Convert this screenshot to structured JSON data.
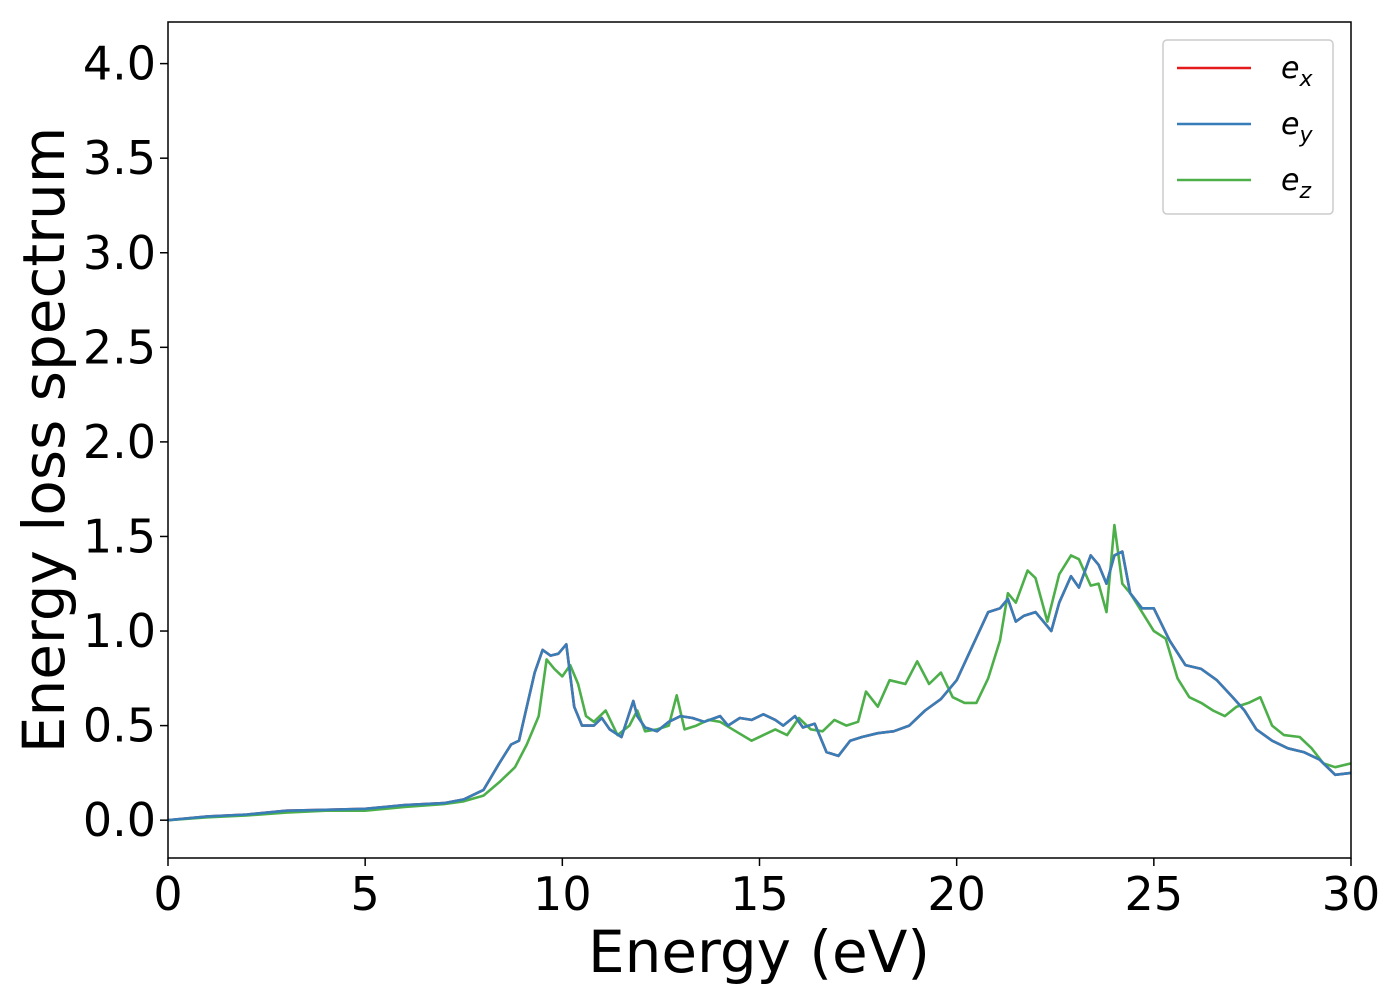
{
  "chart_data": {
    "type": "line",
    "title": "",
    "xlabel": "Energy (eV)",
    "ylabel": "Energy loss spectrum",
    "xlim": [
      0,
      30
    ],
    "ylim": [
      -0.2,
      4.22
    ],
    "xticks": [
      0,
      5,
      10,
      15,
      20,
      25,
      30
    ],
    "xtick_labels": [
      "0",
      "5",
      "10",
      "15",
      "20",
      "25",
      "30"
    ],
    "yticks": [
      0.0,
      0.5,
      1.0,
      1.5,
      2.0,
      2.5,
      3.0,
      3.5,
      4.0
    ],
    "ytick_labels": [
      "0.0",
      "0.5",
      "1.0",
      "1.5",
      "2.0",
      "2.5",
      "3.0",
      "3.5",
      "4.0"
    ],
    "grid": false,
    "legend_position": "top-right",
    "series": [
      {
        "name": "e_x",
        "label_main": "e",
        "label_sub": "x",
        "color": "#e41a1c",
        "x": [
          0,
          1,
          2,
          3,
          4,
          5,
          6,
          7,
          7.5,
          8,
          8.4,
          8.7,
          8.9,
          9.1,
          9.3,
          9.5,
          9.7,
          9.9,
          10.1,
          10.3,
          10.5,
          10.8,
          11.0,
          11.2,
          11.5,
          11.8,
          11.9,
          12.1,
          12.4,
          12.7,
          13.0,
          13.3,
          13.6,
          14.0,
          14.2,
          14.5,
          14.8,
          15.1,
          15.4,
          15.6,
          15.9,
          16.1,
          16.4,
          16.7,
          17.0,
          17.3,
          17.6,
          18.0,
          18.4,
          18.8,
          19.2,
          19.6,
          20.0,
          20.4,
          20.8,
          21.1,
          21.3,
          21.5,
          21.7,
          22.0,
          22.4,
          22.6,
          22.9,
          23.1,
          23.4,
          23.6,
          23.8,
          24.0,
          24.2,
          24.4,
          24.7,
          25.0,
          25.4,
          25.8,
          26.2,
          26.6,
          27.0,
          27.3,
          27.6,
          28.0,
          28.4,
          28.8,
          29.2,
          29.6,
          30.0
        ],
        "y": [
          0,
          0.02,
          0.03,
          0.05,
          0.055,
          0.06,
          0.08,
          0.09,
          0.11,
          0.16,
          0.3,
          0.4,
          0.42,
          0.6,
          0.78,
          0.9,
          0.87,
          0.88,
          0.93,
          0.6,
          0.5,
          0.5,
          0.54,
          0.48,
          0.44,
          0.63,
          0.55,
          0.49,
          0.47,
          0.52,
          0.55,
          0.54,
          0.52,
          0.55,
          0.5,
          0.54,
          0.53,
          0.56,
          0.53,
          0.5,
          0.55,
          0.49,
          0.51,
          0.36,
          0.34,
          0.42,
          0.44,
          0.46,
          0.47,
          0.5,
          0.58,
          0.64,
          0.74,
          0.92,
          1.1,
          1.12,
          1.17,
          1.05,
          1.08,
          1.1,
          1.0,
          1.15,
          1.29,
          1.23,
          1.4,
          1.35,
          1.25,
          1.4,
          1.42,
          1.2,
          1.12,
          1.12,
          0.95,
          0.82,
          0.8,
          0.74,
          0.65,
          0.58,
          0.48,
          0.42,
          0.38,
          0.36,
          0.32,
          0.24,
          0.25
        ]
      },
      {
        "name": "e_y",
        "label_main": "e",
        "label_sub": "y",
        "color": "#377eb8",
        "x": [
          0,
          1,
          2,
          3,
          4,
          5,
          6,
          7,
          7.5,
          8,
          8.4,
          8.7,
          8.9,
          9.1,
          9.3,
          9.5,
          9.7,
          9.9,
          10.1,
          10.3,
          10.5,
          10.8,
          11.0,
          11.2,
          11.5,
          11.8,
          11.9,
          12.1,
          12.4,
          12.7,
          13.0,
          13.3,
          13.6,
          14.0,
          14.2,
          14.5,
          14.8,
          15.1,
          15.4,
          15.6,
          15.9,
          16.1,
          16.4,
          16.7,
          17.0,
          17.3,
          17.6,
          18.0,
          18.4,
          18.8,
          19.2,
          19.6,
          20.0,
          20.4,
          20.8,
          21.1,
          21.3,
          21.5,
          21.7,
          22.0,
          22.4,
          22.6,
          22.9,
          23.1,
          23.4,
          23.6,
          23.8,
          24.0,
          24.2,
          24.4,
          24.7,
          25.0,
          25.4,
          25.8,
          26.2,
          26.6,
          27.0,
          27.3,
          27.6,
          28.0,
          28.4,
          28.8,
          29.2,
          29.6,
          30.0
        ],
        "y": [
          0,
          0.02,
          0.03,
          0.05,
          0.055,
          0.06,
          0.08,
          0.09,
          0.11,
          0.16,
          0.3,
          0.4,
          0.42,
          0.6,
          0.78,
          0.9,
          0.87,
          0.88,
          0.93,
          0.6,
          0.5,
          0.5,
          0.54,
          0.48,
          0.44,
          0.63,
          0.55,
          0.49,
          0.47,
          0.52,
          0.55,
          0.54,
          0.52,
          0.55,
          0.5,
          0.54,
          0.53,
          0.56,
          0.53,
          0.5,
          0.55,
          0.49,
          0.51,
          0.36,
          0.34,
          0.42,
          0.44,
          0.46,
          0.47,
          0.5,
          0.58,
          0.64,
          0.74,
          0.92,
          1.1,
          1.12,
          1.17,
          1.05,
          1.08,
          1.1,
          1.0,
          1.15,
          1.29,
          1.23,
          1.4,
          1.35,
          1.25,
          1.4,
          1.42,
          1.2,
          1.12,
          1.12,
          0.95,
          0.82,
          0.8,
          0.74,
          0.65,
          0.58,
          0.48,
          0.42,
          0.38,
          0.36,
          0.32,
          0.24,
          0.25
        ]
      },
      {
        "name": "e_z",
        "label_main": "e",
        "label_sub": "z",
        "color": "#4daf4a",
        "x": [
          0,
          1,
          2,
          3,
          4,
          5,
          6,
          7,
          7.5,
          8,
          8.4,
          8.8,
          9.1,
          9.4,
          9.6,
          9.8,
          10.0,
          10.2,
          10.4,
          10.6,
          10.8,
          11.1,
          11.4,
          11.7,
          11.9,
          12.1,
          12.4,
          12.7,
          12.9,
          13.1,
          13.4,
          13.7,
          14.0,
          14.4,
          14.8,
          15.1,
          15.4,
          15.7,
          16.0,
          16.3,
          16.6,
          16.9,
          17.2,
          17.5,
          17.7,
          18.0,
          18.3,
          18.7,
          19.0,
          19.3,
          19.6,
          19.9,
          20.2,
          20.5,
          20.8,
          21.1,
          21.3,
          21.5,
          21.8,
          22.0,
          22.3,
          22.6,
          22.9,
          23.1,
          23.4,
          23.6,
          23.8,
          24.0,
          24.2,
          24.4,
          24.7,
          25.0,
          25.3,
          25.6,
          25.9,
          26.2,
          26.5,
          26.8,
          27.1,
          27.4,
          27.7,
          28.0,
          28.3,
          28.7,
          29.0,
          29.3,
          29.6,
          30.0
        ],
        "y": [
          0,
          0.015,
          0.025,
          0.04,
          0.05,
          0.05,
          0.07,
          0.085,
          0.1,
          0.13,
          0.2,
          0.28,
          0.4,
          0.55,
          0.85,
          0.8,
          0.76,
          0.82,
          0.72,
          0.55,
          0.52,
          0.58,
          0.45,
          0.5,
          0.58,
          0.47,
          0.48,
          0.5,
          0.66,
          0.48,
          0.5,
          0.53,
          0.52,
          0.47,
          0.42,
          0.45,
          0.48,
          0.45,
          0.54,
          0.48,
          0.47,
          0.53,
          0.5,
          0.52,
          0.68,
          0.6,
          0.74,
          0.72,
          0.84,
          0.72,
          0.78,
          0.65,
          0.62,
          0.62,
          0.75,
          0.95,
          1.2,
          1.15,
          1.32,
          1.28,
          1.05,
          1.3,
          1.4,
          1.38,
          1.24,
          1.25,
          1.1,
          1.56,
          1.25,
          1.2,
          1.1,
          1.0,
          0.96,
          0.75,
          0.65,
          0.62,
          0.58,
          0.55,
          0.6,
          0.62,
          0.65,
          0.5,
          0.45,
          0.44,
          0.38,
          0.3,
          0.28,
          0.3
        ]
      }
    ]
  }
}
